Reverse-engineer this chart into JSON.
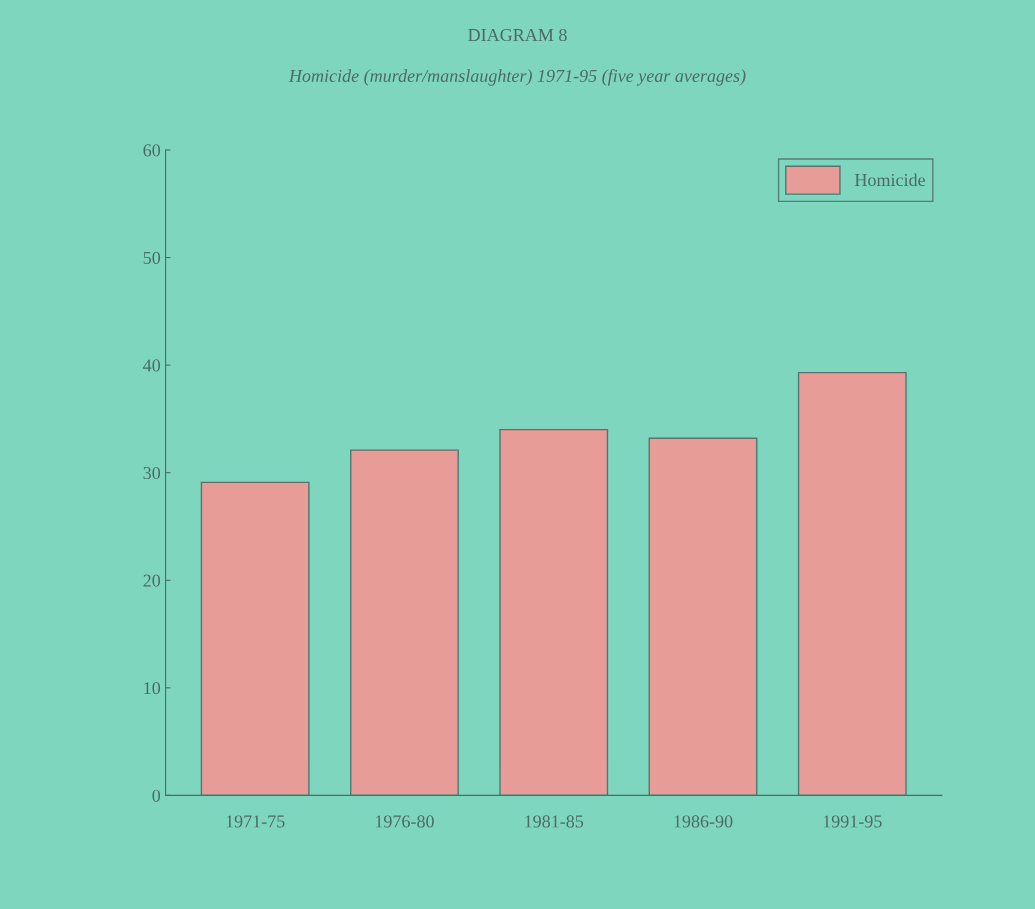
{
  "chart_data": {
    "type": "bar",
    "title": "DIAGRAM 8",
    "subtitle": "Homicide (murder/manslaughter) 1971-95 (five year averages)",
    "categories": [
      "1971-75",
      "1976-80",
      "1981-85",
      "1986-90",
      "1991-95"
    ],
    "series": [
      {
        "name": "Homicide",
        "color": "#e89c98",
        "values": [
          29.1,
          32.1,
          34.0,
          33.2,
          39.3
        ]
      }
    ],
    "ylim": [
      0,
      60
    ],
    "yticks": [
      0,
      10,
      20,
      30,
      40,
      50,
      60
    ],
    "grid": false,
    "legend": "top right"
  }
}
